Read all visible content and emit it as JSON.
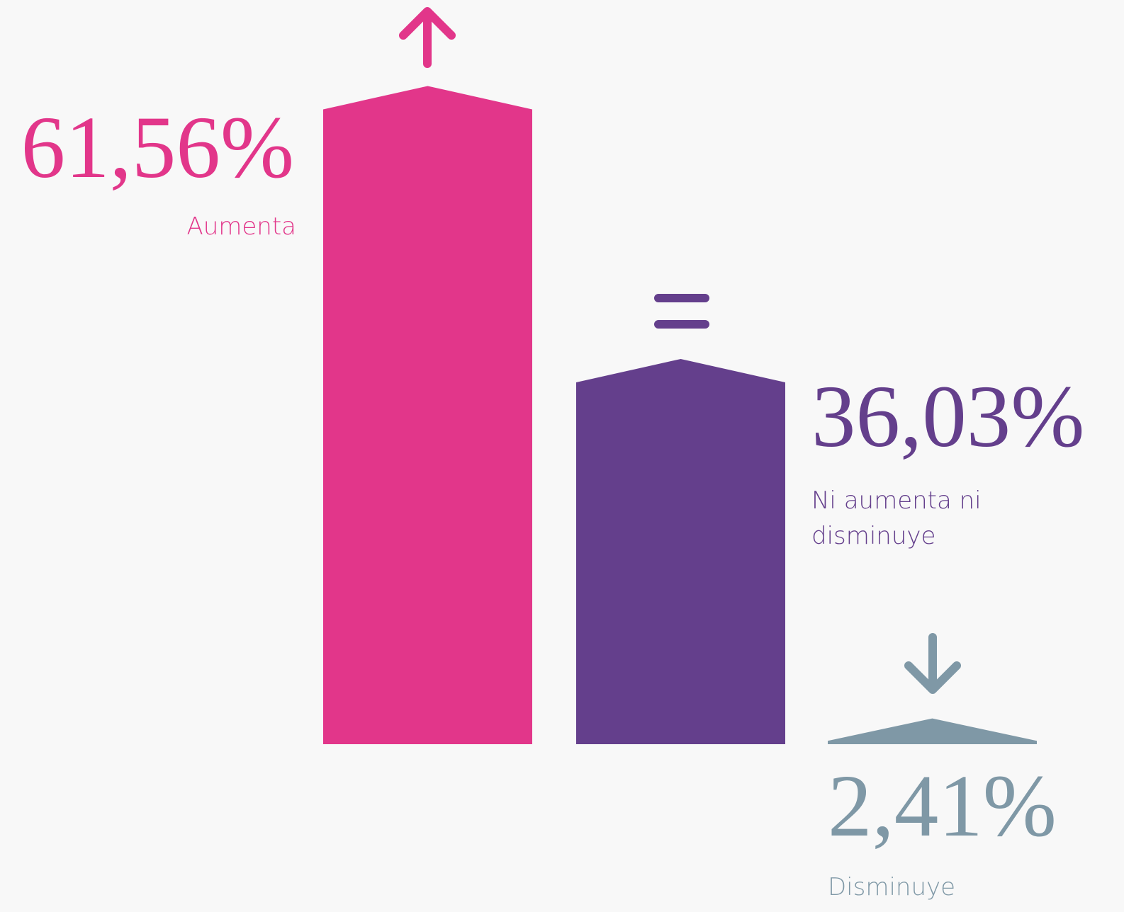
{
  "chart_data": {
    "type": "bar",
    "categories": [
      "Aumenta",
      "Ni aumenta ni disminuye",
      "Disminuye"
    ],
    "values": [
      61.56,
      36.03,
      2.41
    ],
    "value_labels": [
      "61,56%",
      "36,03%",
      "2,41%"
    ],
    "colors": [
      "#e2368a",
      "#643f8c",
      "#7f98a6"
    ]
  }
}
